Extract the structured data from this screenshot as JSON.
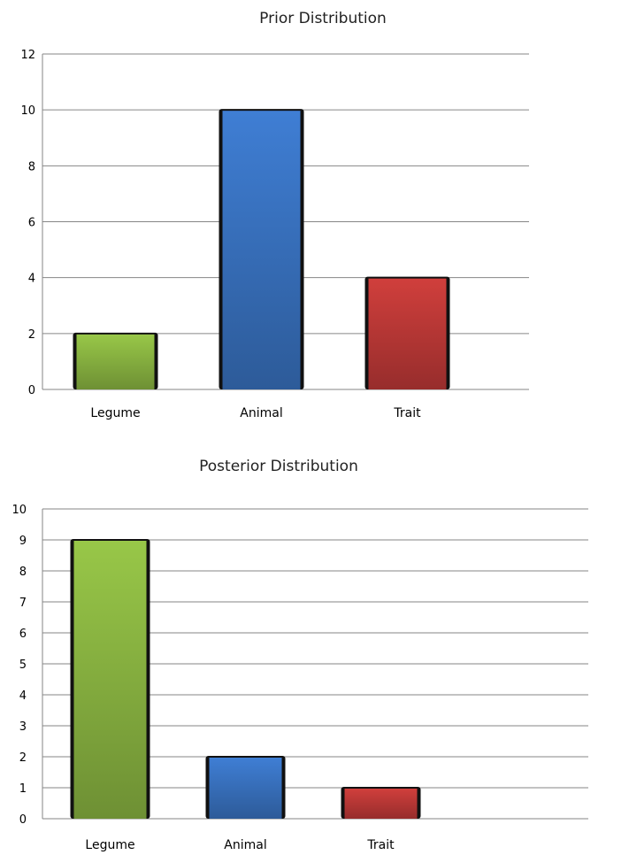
{
  "chart_data": [
    {
      "type": "bar",
      "title": "Prior Distribution",
      "categories": [
        "Legume",
        "Animal",
        "Trait"
      ],
      "values": [
        2,
        10,
        4
      ],
      "colors": [
        "#8db843",
        "#3a75c4",
        "#c13a38"
      ],
      "ylim": [
        0,
        12
      ],
      "yticks": [
        "0",
        "2",
        "4",
        "6",
        "8",
        "10",
        "12"
      ],
      "xlabel": "",
      "ylabel": "",
      "grid": true
    },
    {
      "type": "bar",
      "title": "Posterior Distribution",
      "categories": [
        "Legume",
        "Animal",
        "Trait"
      ],
      "values": [
        9,
        2,
        1
      ],
      "colors": [
        "#8db843",
        "#3a75c4",
        "#c13a38"
      ],
      "ylim": [
        0,
        10
      ],
      "yticks": [
        "0",
        "1",
        "2",
        "3",
        "4",
        "5",
        "6",
        "7",
        "8",
        "9",
        "10"
      ],
      "xlabel": "",
      "ylabel": "",
      "grid": true
    }
  ]
}
